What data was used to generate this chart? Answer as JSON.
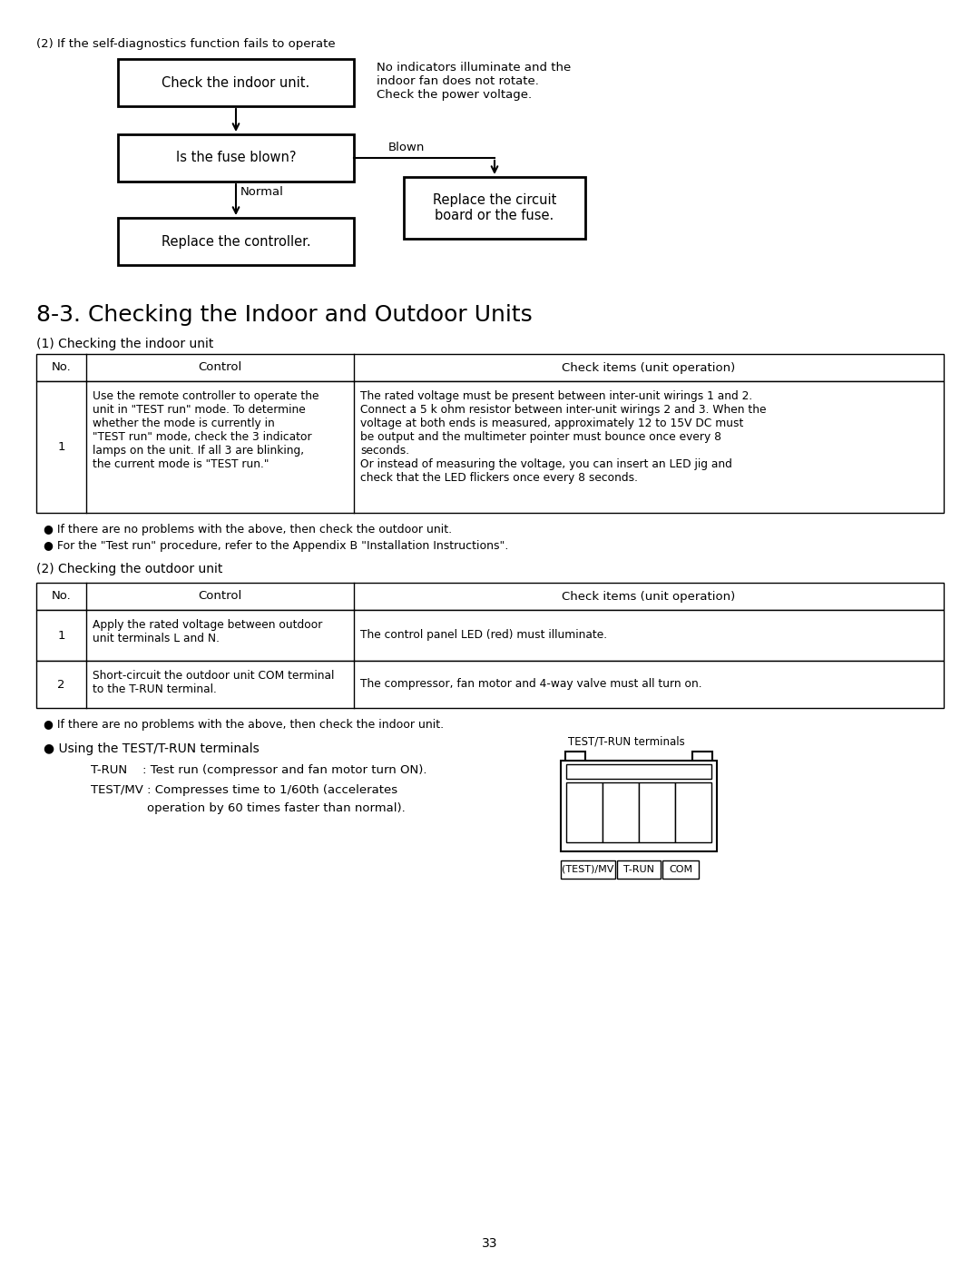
{
  "bg_color": "#ffffff",
  "page_number": "33",
  "section2_label": "(2) If the self-diagnostics function fails to operate",
  "bullet1": "● If there are no problems with the above, then check the outdoor unit.",
  "bullet2": "● For the \"Test run\" procedure, refer to the Appendix B \"Installation Instructions\".",
  "bullet3": "● If there are no problems with the above, then check the indoor unit.",
  "section_title": "8-3. Checking the Indoor and Outdoor Units",
  "sub1_title": "(1) Checking the indoor unit",
  "sub2_title": "(2) Checking the outdoor unit",
  "test_title": "● Using the TEST/T-RUN terminals",
  "terminal_label": "TEST/T-RUN terminals",
  "terminal_labels_bottom": [
    "(TEST)/MV",
    "T-RUN",
    "COM"
  ],
  "flow_note": "No indicators illuminate and the\nindoor fan does not rotate.\nCheck the power voltage."
}
